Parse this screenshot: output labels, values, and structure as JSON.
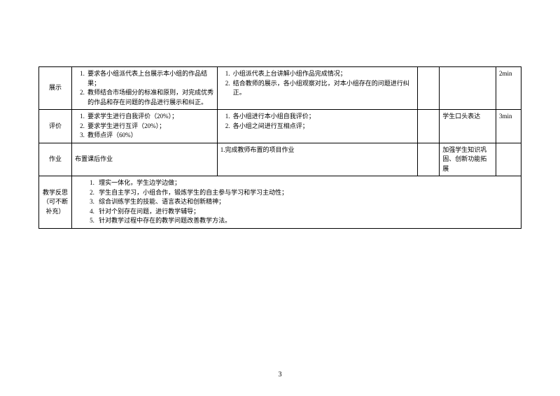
{
  "table": {
    "rows": [
      {
        "label": "展示",
        "col1_items": [
          "要求各小组派代表上台展示本小组的作品结果；",
          "教师结合市场细分的标准和原则，对完成优秀的作品和存在问题的作品进行展示和纠正。"
        ],
        "col2_items": [
          "小组派代表上台讲解小组作品完成情况；",
          "结合教师的展示，各小组观察对比，对本小组存在的问题进行纠正。"
        ],
        "col3": "",
        "col4": "",
        "col5": "2min"
      },
      {
        "label": "评价",
        "col1_items": [
          "要求学生进行自我评价（20%）；",
          "要求学生进行互评（20%）；",
          "教师点评（60%）"
        ],
        "col2_items": [
          "各小组进行本小组自我评价；",
          "各小组之间进行互相点评；"
        ],
        "col3": "",
        "col4": "学生口头表达",
        "col5": "3min"
      },
      {
        "label": "作业",
        "col1_text": "布置课后作业",
        "col2_text": "1.完成教师布置的项目作业",
        "col3": "",
        "col4": "加强学生知识巩固、创新功能拓展",
        "col5": ""
      }
    ],
    "reflection": {
      "label_line1": "教学反思",
      "label_line2": "（可不断补充）",
      "items": [
        "理实一体化，学生边学边做；",
        "学生自主学习，小组合作，锻炼学生的自主参与学习和学习主动性；",
        "综合训练学生的技能、语言表达和创新精神；",
        "针对个别存在问题，进行教学辅导；",
        "针对教学过程中存在的教学问题改善教学方法。"
      ]
    }
  },
  "page_number": "3"
}
